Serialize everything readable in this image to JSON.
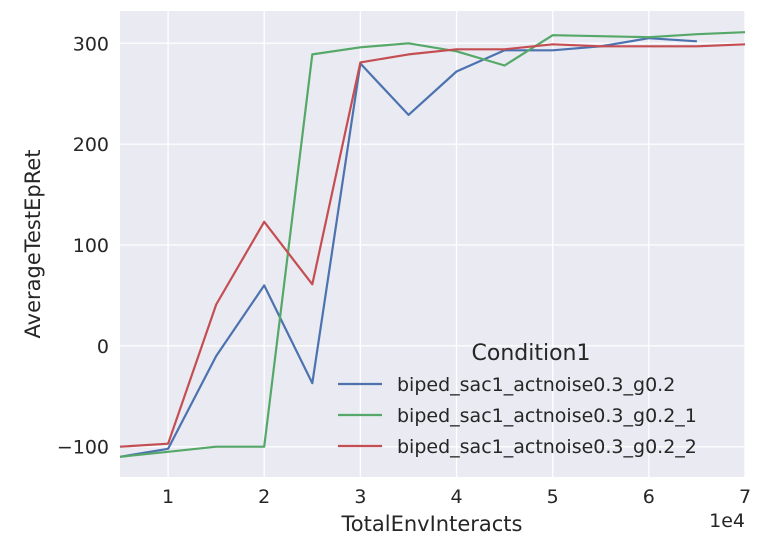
{
  "chart_data": {
    "type": "line",
    "xlabel": "TotalEnvInteracts",
    "ylabel": "AverageTestEpRet",
    "x_offset_label": "1e4",
    "xlim": [
      0.5,
      7.0
    ],
    "ylim": [
      -130,
      332
    ],
    "xticks": [
      1,
      2,
      3,
      4,
      5,
      6,
      7
    ],
    "yticks": [
      -100,
      0,
      100,
      200,
      300
    ],
    "ytick_labels": [
      "−100",
      "0",
      "100",
      "200",
      "300"
    ],
    "grid": true,
    "background": "#eaeaf2",
    "legend": {
      "title": "Condition1",
      "placement": "lower-right"
    },
    "series": [
      {
        "name": "biped_sac1_actnoise0.3_g0.2",
        "color": "#4c72b0",
        "x": [
          0.5,
          1.0,
          1.5,
          2.0,
          2.5,
          3.0,
          3.5,
          4.0,
          4.5,
          5.0,
          5.5,
          6.0,
          6.5
        ],
        "y": [
          -110,
          -102,
          -10,
          60,
          -37,
          280,
          229,
          272,
          293,
          293,
          297,
          305,
          302
        ]
      },
      {
        "name": "biped_sac1_actnoise0.3_g0.2_1",
        "color": "#55a868",
        "x": [
          0.5,
          1.0,
          1.5,
          2.0,
          2.5,
          3.0,
          3.5,
          4.0,
          4.5,
          5.0,
          5.5,
          6.0,
          6.5,
          7.0
        ],
        "y": [
          -110,
          -105,
          -100,
          -100,
          289,
          296,
          300,
          292,
          278,
          308,
          307,
          306,
          309,
          311
        ]
      },
      {
        "name": "biped_sac1_actnoise0.3_g0.2_2",
        "color": "#c44e52",
        "x": [
          0.5,
          1.0,
          1.5,
          2.0,
          2.5,
          3.0,
          3.5,
          4.0,
          4.5,
          5.0,
          5.5,
          6.0,
          6.5,
          7.0
        ],
        "y": [
          -100,
          -97,
          41,
          123,
          61,
          281,
          289,
          294,
          294,
          299,
          297,
          297,
          297,
          299
        ]
      }
    ]
  }
}
